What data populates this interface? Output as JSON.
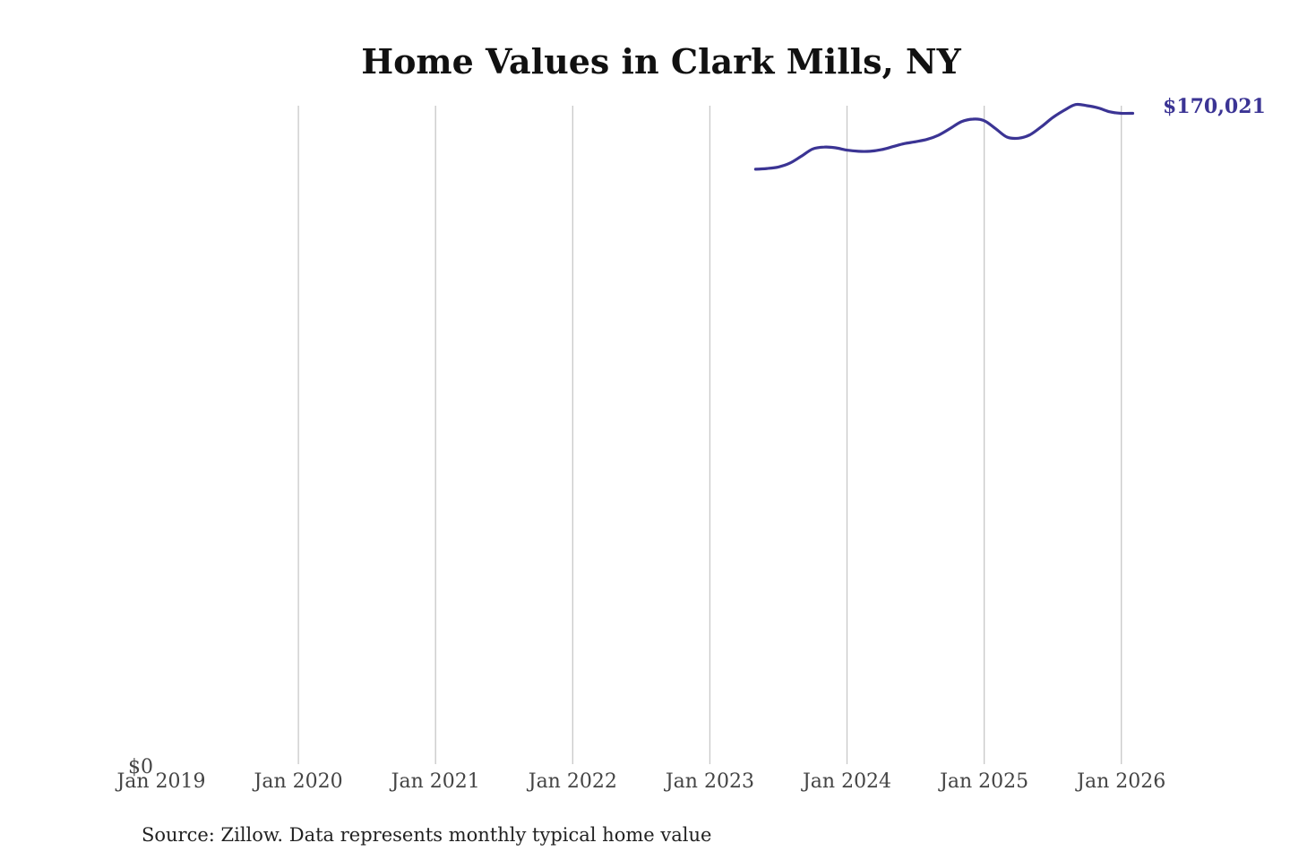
{
  "chart_data": {
    "type": "line",
    "title": "Home Values in Clark Mills, NY",
    "xlabel": "",
    "ylabel": "",
    "x_tick_labels": [
      "Jan 2019",
      "Jan 2020",
      "Jan 2021",
      "Jan 2022",
      "Jan 2023",
      "Jan 2024",
      "Jan 2025",
      "Jan 2026"
    ],
    "y_tick_labels": [
      "$0"
    ],
    "xlim": [
      "2019-01",
      "2026-04"
    ],
    "ylim": [
      0,
      172000
    ],
    "grid": "vertical",
    "line_color": "#3b3494",
    "end_label": "$170,021",
    "series": [
      {
        "x": [
          "2023-05",
          "2023-06",
          "2023-07",
          "2023-08",
          "2023-09",
          "2023-10",
          "2023-11",
          "2023-12",
          "2024-01",
          "2024-02",
          "2024-03",
          "2024-04",
          "2024-05",
          "2024-06",
          "2024-07",
          "2024-08",
          "2024-09",
          "2024-10",
          "2024-11",
          "2024-12",
          "2025-01",
          "2025-02",
          "2025-03",
          "2025-04",
          "2025-05",
          "2025-06",
          "2025-07",
          "2025-08",
          "2025-09",
          "2025-10",
          "2025-11",
          "2025-12",
          "2026-01",
          "2026-02"
        ],
        "values": [
          155400,
          155600,
          156000,
          157000,
          158800,
          160700,
          161200,
          161000,
          160400,
          160100,
          160100,
          160500,
          161300,
          162100,
          162600,
          163200,
          164300,
          166000,
          167800,
          168500,
          168100,
          166000,
          163800,
          163500,
          164400,
          166500,
          168900,
          170800,
          172300,
          172000,
          171400,
          170400,
          170021,
          170021
        ]
      }
    ]
  },
  "source_note": "Source: Zillow. Data represents monthly typical home value"
}
